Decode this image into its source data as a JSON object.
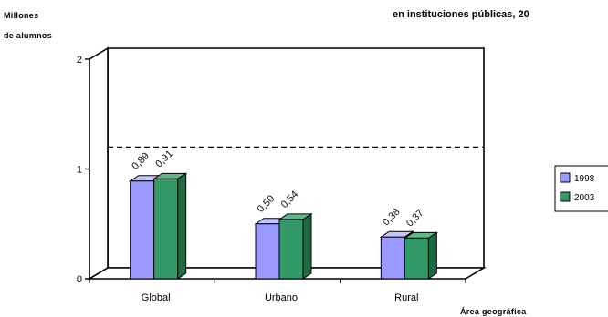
{
  "chart_data": {
    "type": "bar",
    "title_fragment": "en instituciones públicas, 20",
    "ylabel_lines": [
      "Millones",
      "de alumnos"
    ],
    "xlabel": "Área geográfica",
    "categories": [
      "Global",
      "Urbano",
      "Rural"
    ],
    "series": [
      {
        "name": "1998",
        "values": [
          0.89,
          0.5,
          0.38
        ],
        "value_labels": [
          "0,89",
          "0,50",
          "0,38"
        ],
        "color": "#9999ff",
        "side_color": "#6a6acc",
        "top_color": "#c4c4ff"
      },
      {
        "name": "2003",
        "values": [
          0.91,
          0.54,
          0.37
        ],
        "value_labels": [
          "0,91",
          "0,54",
          "0,37"
        ],
        "color": "#339966",
        "side_color": "#1f6a42",
        "top_color": "#5cb88a"
      }
    ],
    "yticks": [
      0,
      1,
      2
    ],
    "ylim": [
      0,
      2
    ],
    "reference_line": {
      "value": 1.1,
      "style": "dashed"
    },
    "grid": false,
    "legend_position": "right",
    "three_d": true
  }
}
